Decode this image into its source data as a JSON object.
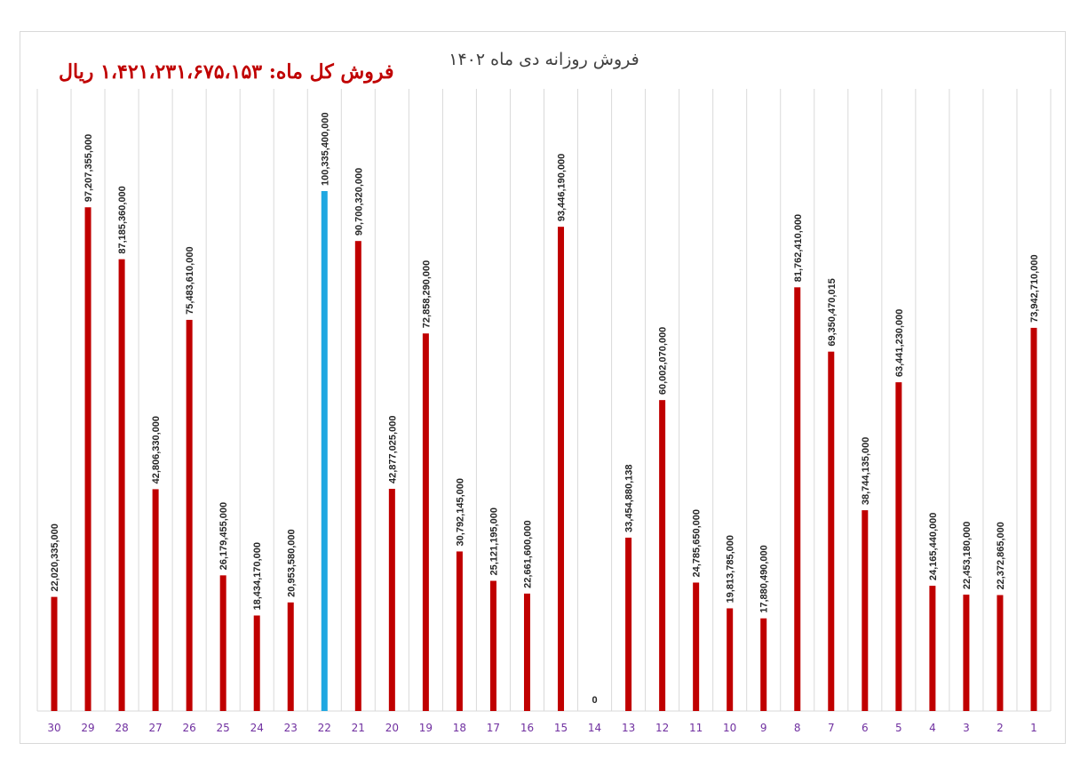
{
  "header": {
    "title": "فروش روزانه دی ماه ۱۴۰۲",
    "total_sales": "فروش کل ماه: ۱،۴۲۱،۲۳۱،۶۷۵،۱۵۳ ریال"
  },
  "colors": {
    "bar": "#c00000",
    "highlight": "#1fa7e1",
    "grid": "#d9d9d9",
    "tick_text": "#7030a0"
  },
  "chart_data": {
    "type": "bar",
    "title": "فروش روزانه دی ماه ۱۴۰۲",
    "xlabel": "",
    "ylabel": "",
    "ylim": [
      0,
      102000000000
    ],
    "grid": "vertical",
    "highlight_category": "22",
    "categories": [
      "30",
      "29",
      "28",
      "27",
      "26",
      "25",
      "24",
      "23",
      "22",
      "21",
      "20",
      "19",
      "18",
      "17",
      "16",
      "15",
      "14",
      "13",
      "12",
      "11",
      "10",
      "9",
      "8",
      "7",
      "6",
      "5",
      "4",
      "3",
      "2",
      "1"
    ],
    "values": [
      22020335000,
      97207355000,
      87185360000,
      42806330000,
      75483610000,
      26179455000,
      18434170000,
      20953580000,
      100335400000,
      90700320000,
      42877025000,
      72858290000,
      30792145000,
      25121195000,
      22661600000,
      93446190000,
      0,
      33454880138,
      60002070000,
      24785650000,
      19813785000,
      17880490000,
      81762410000,
      69350470015,
      38744135000,
      63441230000,
      24165440000,
      22453180000,
      22372865000,
      73942710000
    ],
    "value_labels": [
      "22,020,335,000",
      "97,207,355,000",
      "87,185,360,000",
      "42,806,330,000",
      "75,483,610,000",
      "26,179,455,000",
      "18,434,170,000",
      "20,953,580,000",
      "100,335,400,000",
      "90,700,320,000",
      "42,877,025,000",
      "72,858,290,000",
      "30,792,145,000",
      "25,121,195,000",
      "22,661,600,000",
      "93,446,190,000",
      "0",
      "33,454,880,138",
      "60,002,070,000",
      "24,785,650,000",
      "19,813,785,000",
      "17,880,490,000",
      "81,762,410,000",
      "69,350,470,015",
      "38,744,135,000",
      "63,441,230,000",
      "24,165,440,000",
      "22,453,180,000",
      "22,372,865,000",
      "73,942,710,000"
    ]
  }
}
